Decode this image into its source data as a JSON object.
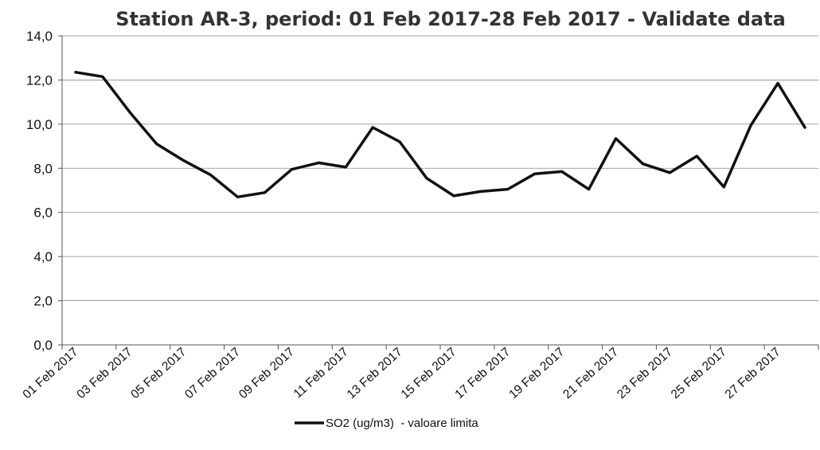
{
  "chart_data": {
    "type": "line",
    "title": "Station AR-3, period: 01 Feb 2017-28 Feb 2017 - Validate data",
    "xlabel": "",
    "ylabel": "",
    "ylim": [
      0,
      14
    ],
    "yticks": [
      "0,0",
      "2,0",
      "4,0",
      "6,0",
      "8,0",
      "10,0",
      "12,0",
      "14,0"
    ],
    "ytick_values": [
      0,
      2,
      4,
      6,
      8,
      10,
      12,
      14
    ],
    "x": [
      "01 Feb 2017",
      "02 Feb 2017",
      "03 Feb 2017",
      "04 Feb 2017",
      "05 Feb 2017",
      "06 Feb 2017",
      "07 Feb 2017",
      "08 Feb 2017",
      "09 Feb 2017",
      "10 Feb 2017",
      "11 Feb 2017",
      "12 Feb 2017",
      "13 Feb 2017",
      "14 Feb 2017",
      "15 Feb 2017",
      "16 Feb 2017",
      "17 Feb 2017",
      "18 Feb 2017",
      "19 Feb 2017",
      "20 Feb 2017",
      "21 Feb 2017",
      "22 Feb 2017",
      "23 Feb 2017",
      "24 Feb 2017",
      "25 Feb 2017",
      "26 Feb 2017",
      "27 Feb 2017",
      "28 Feb 2017"
    ],
    "xtick_labels": [
      "01 Feb 2017",
      "03 Feb 2017",
      "05 Feb 2017",
      "07 Feb 2017",
      "09 Feb 2017",
      "11 Feb 2017",
      "13 Feb 2017",
      "15 Feb 2017",
      "17 Feb 2017",
      "19 Feb 2017",
      "21 Feb 2017",
      "23 Feb 2017",
      "25 Feb 2017",
      "27 Feb 2017"
    ],
    "grid": true,
    "legend_position": "bottom-center",
    "series": [
      {
        "name": "SO2 (ug/m3)  - valoare limita",
        "color": "#111111",
        "values": [
          12.35,
          12.15,
          10.55,
          9.1,
          8.35,
          7.7,
          6.7,
          6.9,
          7.95,
          8.25,
          8.05,
          9.85,
          9.2,
          7.55,
          6.75,
          6.95,
          7.05,
          7.75,
          7.85,
          7.05,
          9.35,
          8.2,
          7.8,
          8.55,
          7.15,
          9.95,
          11.85,
          9.85
        ]
      }
    ]
  }
}
